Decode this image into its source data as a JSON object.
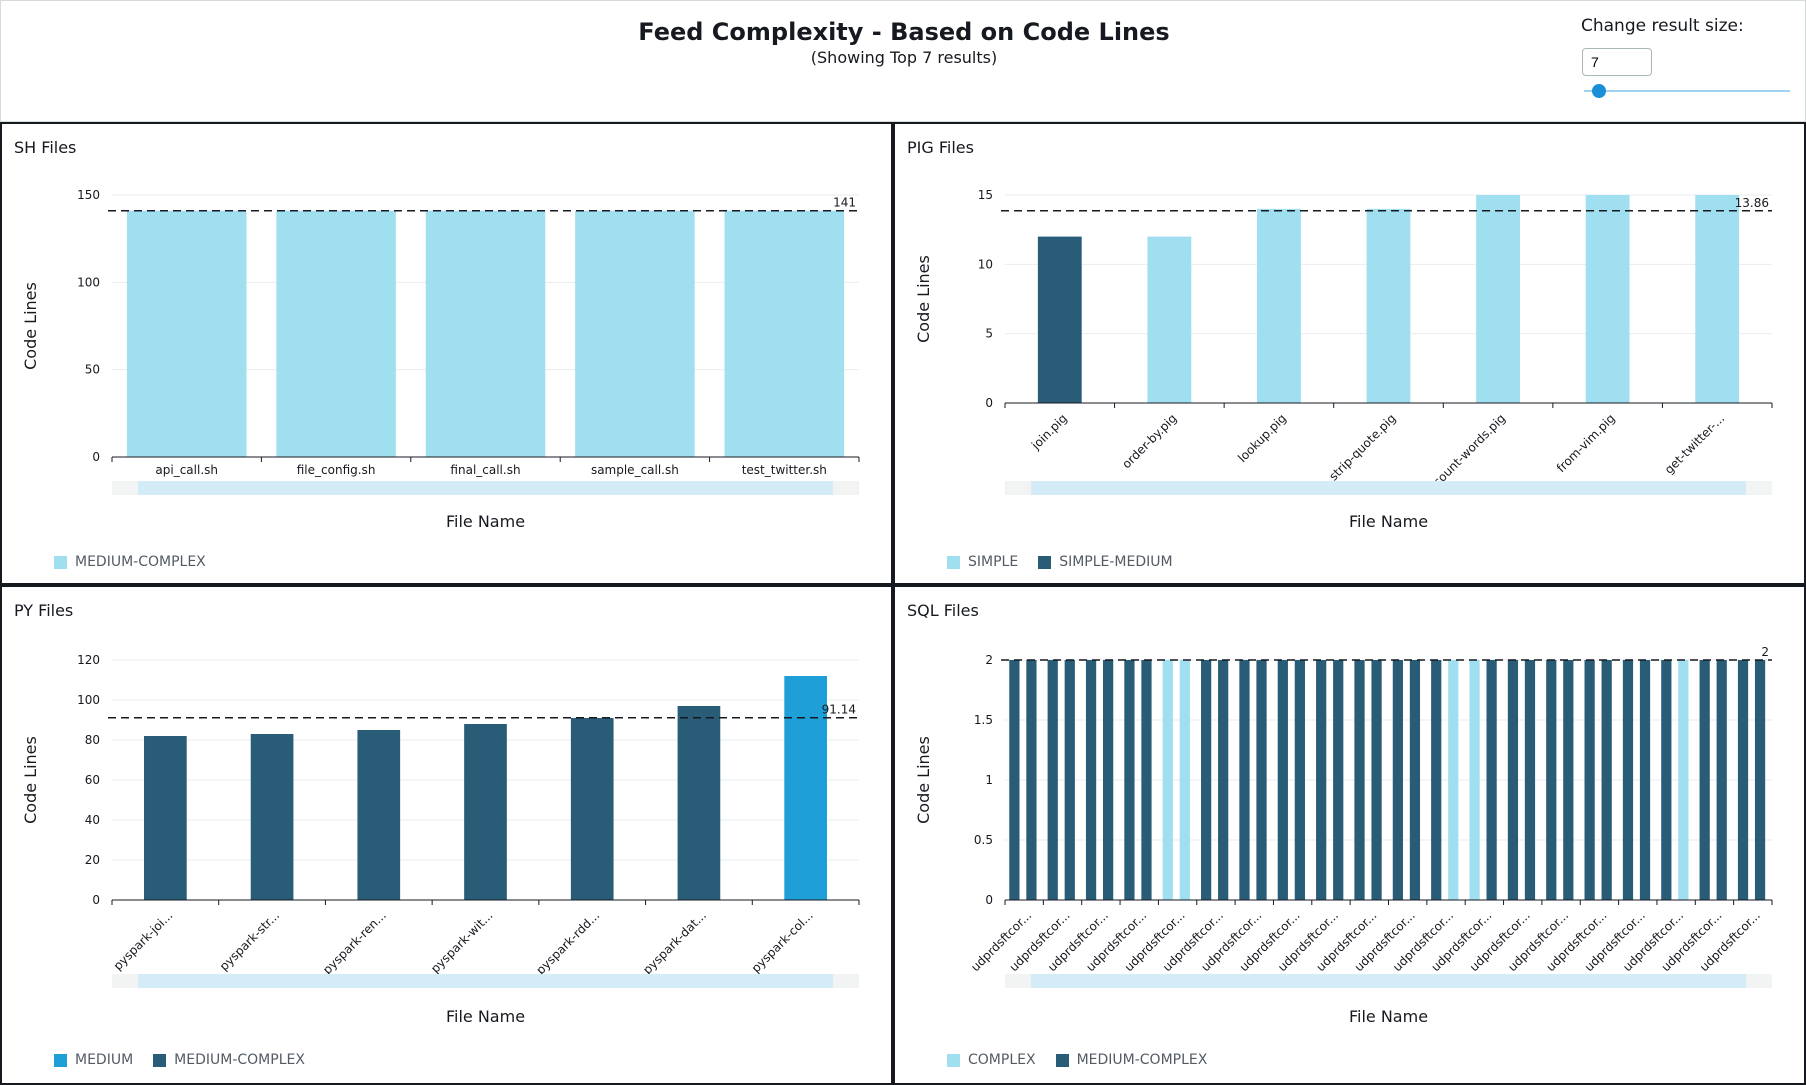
{
  "header": {
    "title": "Feed Complexity - Based on Code Lines",
    "subtitle": "(Showing Top 7 results)",
    "result_size_label": "Change result size:",
    "result_size_value": "7",
    "result_size_slider_fraction": 0.04
  },
  "colors": {
    "medium_complex": "#a0dff0",
    "simple": "#a0dff0",
    "complex": "#a0dff0",
    "simple_medium": "#295c77",
    "medium_complex_dark": "#295c77",
    "medium": "#1f9fd8"
  },
  "chart_data": [
    {
      "type": "bar",
      "title": "SH Files",
      "xlabel": "File Name",
      "ylabel": "Code Lines",
      "ylim": [
        0,
        150
      ],
      "yticks": [
        0,
        50,
        100,
        150
      ],
      "categories": [
        "api_call.sh",
        "file_config.sh",
        "final_call.sh",
        "sample_call.sh",
        "test_twitter.sh"
      ],
      "values": [
        141,
        141,
        141,
        141,
        141
      ],
      "classes": [
        "MEDIUM-COMPLEX",
        "MEDIUM-COMPLEX",
        "MEDIUM-COMPLEX",
        "MEDIUM-COMPLEX",
        "MEDIUM-COMPLEX"
      ],
      "average": 141,
      "average_label": "141",
      "legend": [
        {
          "label": "MEDIUM-COMPLEX",
          "color": "#a0dff0"
        }
      ],
      "rotate_labels": false
    },
    {
      "type": "bar",
      "title": "PIG Files",
      "xlabel": "File Name",
      "ylabel": "Code Lines",
      "ylim": [
        0,
        15
      ],
      "yticks": [
        0,
        5,
        10,
        15
      ],
      "categories": [
        "join.pig",
        "order-by.pig",
        "lookup.pig",
        "strip-quote.pig",
        "count-words.pig",
        "from-vim.pig",
        "get-twitter-..."
      ],
      "values": [
        12,
        12,
        14,
        14,
        15,
        15,
        15
      ],
      "classes": [
        "SIMPLE-MEDIUM",
        "SIMPLE",
        "SIMPLE",
        "SIMPLE",
        "SIMPLE",
        "SIMPLE",
        "SIMPLE"
      ],
      "average": 13.86,
      "average_label": "13.86",
      "legend": [
        {
          "label": "SIMPLE",
          "color": "#a0dff0"
        },
        {
          "label": "SIMPLE-MEDIUM",
          "color": "#295c77"
        }
      ],
      "rotate_labels": true
    },
    {
      "type": "bar",
      "title": "PY Files",
      "xlabel": "File Name",
      "ylabel": "Code Lines",
      "ylim": [
        0,
        120
      ],
      "yticks": [
        0,
        20,
        40,
        60,
        80,
        100,
        120
      ],
      "categories": [
        "pyspark-joi...",
        "pyspark-str...",
        "pyspark-ren...",
        "pyspark-wit...",
        "pyspark-rdd...",
        "pyspark-dat...",
        "pyspark-col..."
      ],
      "values": [
        82,
        83,
        85,
        88,
        91,
        97,
        112
      ],
      "classes": [
        "MEDIUM-COMPLEX",
        "MEDIUM-COMPLEX",
        "MEDIUM-COMPLEX",
        "MEDIUM-COMPLEX",
        "MEDIUM-COMPLEX",
        "MEDIUM-COMPLEX",
        "MEDIUM"
      ],
      "average": 91.14,
      "average_label": "91.14",
      "legend": [
        {
          "label": "MEDIUM",
          "color": "#1f9fd8"
        },
        {
          "label": "MEDIUM-COMPLEX",
          "color": "#295c77"
        }
      ],
      "rotate_labels": true
    },
    {
      "type": "bar",
      "title": "SQL Files",
      "xlabel": "File Name",
      "ylabel": "Code Lines",
      "ylim": [
        0,
        2
      ],
      "yticks": [
        0,
        0.5,
        1,
        1.5,
        2
      ],
      "ytick_labels": [
        "0",
        "0.5",
        "1",
        "1.5",
        "2"
      ],
      "categories": [
        "udprdsftcor...",
        "udprdsftcor...",
        "udprdsftcor...",
        "udprdsftcor...",
        "udprdsftcor...",
        "udprdsftcor...",
        "udprdsftcor...",
        "udprdsftcor...",
        "udprdsftcor...",
        "udprdsftcor...",
        "udprdsftcor...",
        "udprdsftcor...",
        "udprdsftcor...",
        "udprdsftcor...",
        "udprdsftcor...",
        "udprdsftcor...",
        "udprdsftcor...",
        "udprdsftcor...",
        "udprdsftcor...",
        "udprdsftcor..."
      ],
      "values": [
        2,
        2,
        2,
        2,
        2,
        2,
        2,
        2,
        2,
        2,
        2,
        2,
        2,
        2,
        2,
        2,
        2,
        2,
        2,
        2
      ],
      "classes": [
        "MEDIUM-COMPLEX",
        "MEDIUM-COMPLEX",
        "MEDIUM-COMPLEX",
        "MEDIUM-COMPLEX",
        "MEDIUM-COMPLEX",
        "MEDIUM-COMPLEX",
        "MEDIUM-COMPLEX",
        "MEDIUM-COMPLEX",
        "MEDIUM-COMPLEX",
        "MEDIUM-COMPLEX",
        "MEDIUM-COMPLEX",
        "MEDIUM-COMPLEX",
        "MEDIUM-COMPLEX",
        "MEDIUM-COMPLEX",
        "MEDIUM-COMPLEX",
        "MEDIUM-COMPLEX",
        "MEDIUM-COMPLEX",
        "MEDIUM-COMPLEX",
        "MEDIUM-COMPLEX",
        "MEDIUM-COMPLEX"
      ],
      "bar_colors": [
        [
          "#295c77",
          "#295c77"
        ],
        [
          "#295c77",
          "#295c77"
        ],
        [
          "#295c77",
          "#295c77"
        ],
        [
          "#295c77",
          "#295c77"
        ],
        [
          "#a0dff0",
          "#a0dff0"
        ],
        [
          "#295c77",
          "#295c77"
        ],
        [
          "#295c77",
          "#295c77"
        ],
        [
          "#295c77",
          "#295c77"
        ],
        [
          "#295c77",
          "#295c77"
        ],
        [
          "#295c77",
          "#295c77"
        ],
        [
          "#295c77",
          "#295c77"
        ],
        [
          "#295c77",
          "#a0dff0"
        ],
        [
          "#a0dff0",
          "#295c77"
        ],
        [
          "#295c77",
          "#295c77"
        ],
        [
          "#295c77",
          "#295c77"
        ],
        [
          "#295c77",
          "#295c77"
        ],
        [
          "#295c77",
          "#295c77"
        ],
        [
          "#295c77",
          "#a0dff0"
        ],
        [
          "#295c77",
          "#295c77"
        ],
        [
          "#295c77",
          "#295c77"
        ]
      ],
      "average": 2,
      "average_label": "2",
      "legend": [
        {
          "label": "COMPLEX",
          "color": "#a0dff0"
        },
        {
          "label": "MEDIUM-COMPLEX",
          "color": "#295c77"
        }
      ],
      "rotate_labels": true
    }
  ]
}
